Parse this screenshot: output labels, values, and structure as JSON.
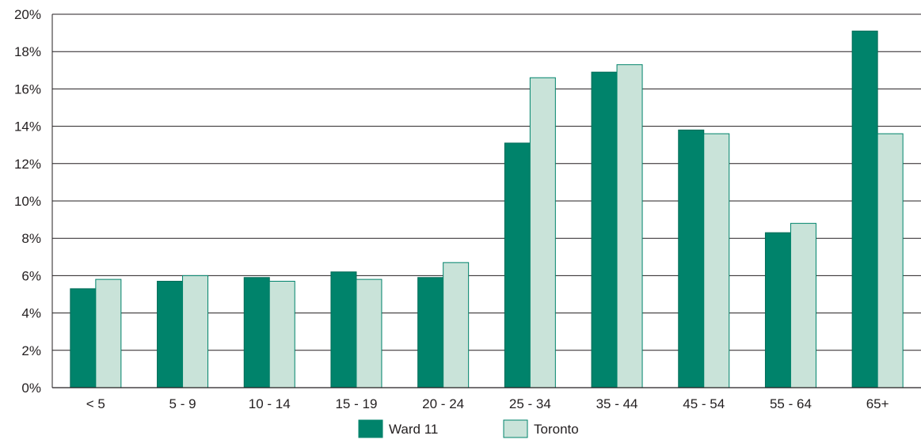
{
  "chart_data": {
    "type": "bar",
    "categories": [
      "< 5",
      "5 - 9",
      "10 - 14",
      "15 - 19",
      "20 - 24",
      "25 - 34",
      "35 - 44",
      "45 - 54",
      "55 - 64",
      "65+"
    ],
    "series": [
      {
        "name": "Ward 11",
        "color": "#00836b",
        "values": [
          5.3,
          5.7,
          5.9,
          6.2,
          5.9,
          13.1,
          16.9,
          13.8,
          8.3,
          19.1
        ]
      },
      {
        "name": "Toronto",
        "color": "#c9e3d9",
        "values": [
          5.8,
          6.0,
          5.7,
          5.8,
          6.7,
          16.6,
          17.3,
          13.6,
          8.8,
          13.6
        ]
      }
    ],
    "y_ticks": [
      "0%",
      "2%",
      "4%",
      "6%",
      "8%",
      "10%",
      "12%",
      "14%",
      "16%",
      "18%",
      "20%"
    ],
    "ylim": [
      0,
      20
    ],
    "grid": true,
    "legend_position": "bottom-center"
  }
}
